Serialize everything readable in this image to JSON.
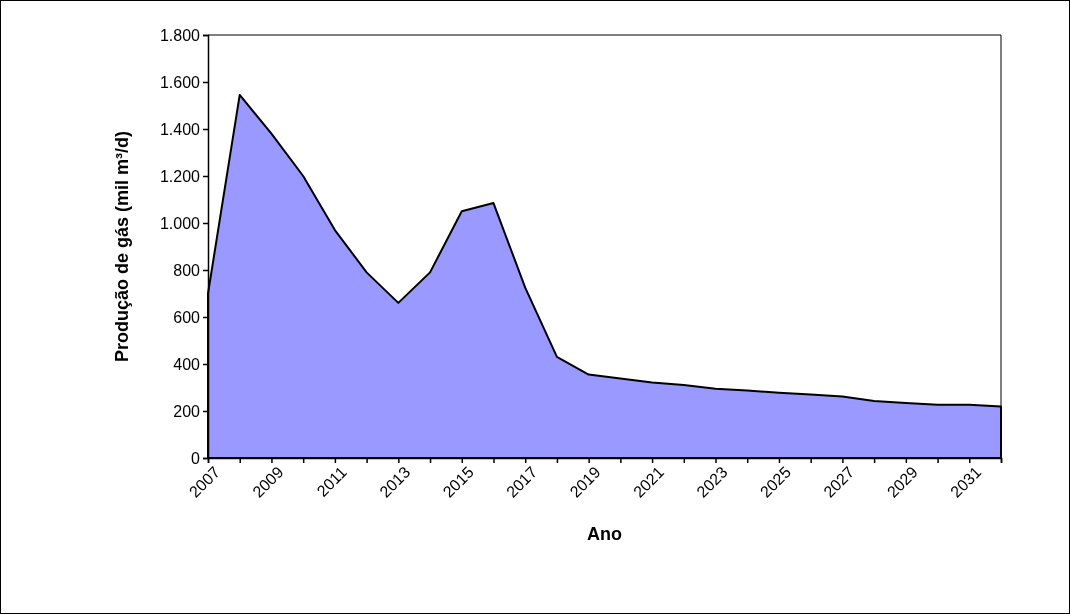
{
  "chart_data": {
    "type": "area",
    "xlabel": "Ano",
    "ylabel": "Produção de gás (mil m³/d)",
    "categories": [
      "2007",
      null,
      "2009",
      null,
      "2011",
      null,
      "2013",
      null,
      "2015",
      null,
      "2017",
      null,
      "2019",
      null,
      "2021",
      null,
      "2023",
      null,
      "2025",
      null,
      "2027",
      null,
      "2029",
      null,
      "2031",
      null
    ],
    "series": [
      {
        "color": "#9999ff",
        "values": [
          700,
          1545,
          1380,
          1200,
          970,
          790,
          660,
          790,
          1050,
          1085,
          725,
          430,
          355,
          338,
          321,
          311,
          295,
          287,
          278,
          270,
          262,
          243,
          234,
          227,
          227,
          219
        ]
      }
    ],
    "ylim": [
      0,
      1800
    ],
    "yticks": [
      0,
      200,
      400,
      600,
      800,
      {
        "value": 1000,
        "label": "1.000"
      },
      {
        "value": 1200,
        "label": "1.200"
      },
      {
        "value": 1400,
        "label": "1.400"
      },
      {
        "value": 1600,
        "label": "1.600"
      },
      {
        "value": 1800,
        "label": "1.800"
      }
    ],
    "grid": false
  }
}
